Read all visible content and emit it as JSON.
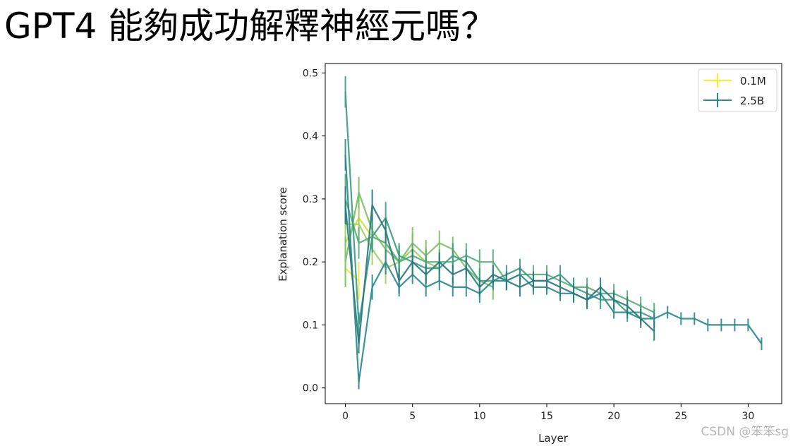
{
  "slide": {
    "title": "GPT4 能夠成功解釋神經元嗎？"
  },
  "watermark": "CSDN @笨笨sg",
  "chart_data": {
    "type": "line",
    "xlabel": "Layer",
    "ylabel": "Explanation score",
    "xlim": [
      -1.5,
      32.5
    ],
    "ylim": [
      -0.025,
      0.515
    ],
    "xticks": [
      0,
      5,
      10,
      15,
      20,
      25,
      30
    ],
    "yticks": [
      0.0,
      0.1,
      0.2,
      0.3,
      0.4,
      0.5
    ],
    "xtick_labels": [
      "0",
      "5",
      "10",
      "15",
      "20",
      "25",
      "30"
    ],
    "ytick_labels": [
      "0.0",
      "0.1",
      "0.2",
      "0.3",
      "0.4",
      "0.5"
    ],
    "grid": false,
    "legend_position": "top-right",
    "legend": [
      {
        "label": "0.1M",
        "color": "#f2f21e"
      },
      {
        "label": "2.5B",
        "color": "#2a8a8e"
      }
    ],
    "series": [
      {
        "color": "#e9e932",
        "x": [
          0,
          1
        ],
        "y": [
          0.19,
          0.17
        ],
        "err": [
          0.03,
          0.03
        ]
      },
      {
        "color": "#c8de3a",
        "x": [
          0,
          1,
          2,
          3,
          4,
          5
        ],
        "y": [
          0.23,
          0.27,
          0.24,
          0.23,
          0.2,
          0.22
        ],
        "err": [
          0.04,
          0.03,
          0.025,
          0.025,
          0.025,
          0.025
        ]
      },
      {
        "color": "#9fd060",
        "x": [
          0,
          1,
          2,
          3,
          4,
          5,
          6,
          7
        ],
        "y": [
          0.26,
          0.26,
          0.22,
          0.19,
          0.2,
          0.22,
          0.2,
          0.19
        ],
        "err": [
          0.04,
          0.03,
          0.025,
          0.025,
          0.025,
          0.025,
          0.025,
          0.025
        ]
      },
      {
        "color": "#7bbf65",
        "x": [
          0,
          1,
          2,
          3,
          4,
          5,
          6,
          7,
          8,
          9,
          10,
          11
        ],
        "y": [
          0.2,
          0.31,
          0.25,
          0.22,
          0.2,
          0.23,
          0.21,
          0.23,
          0.22,
          0.19,
          0.17,
          0.16
        ],
        "err": [
          0.04,
          0.025,
          0.025,
          0.025,
          0.025,
          0.025,
          0.025,
          0.02,
          0.02,
          0.02,
          0.02,
          0.02
        ]
      },
      {
        "color": "#5aae78",
        "x": [
          0,
          1,
          2,
          3,
          4,
          5,
          6,
          7,
          8,
          9,
          10,
          11,
          12,
          13,
          14,
          15,
          16,
          17,
          18,
          19,
          20,
          21,
          22,
          23
        ],
        "y": [
          0.3,
          0.23,
          0.24,
          0.23,
          0.2,
          0.21,
          0.2,
          0.2,
          0.2,
          0.21,
          0.2,
          0.2,
          0.17,
          0.18,
          0.18,
          0.18,
          0.17,
          0.16,
          0.16,
          0.15,
          0.15,
          0.14,
          0.13,
          0.12
        ],
        "err": [
          0.04,
          0.025,
          0.025,
          0.025,
          0.02,
          0.02,
          0.02,
          0.02,
          0.02,
          0.02,
          0.02,
          0.02,
          0.015,
          0.015,
          0.015,
          0.015,
          0.015,
          0.015,
          0.015,
          0.015,
          0.015,
          0.015,
          0.015,
          0.015
        ]
      },
      {
        "color": "#3c9c84",
        "x": [
          0,
          1,
          2,
          3,
          4,
          5,
          6,
          7,
          8,
          9,
          10,
          11,
          12,
          13,
          14,
          15,
          16,
          17,
          18,
          19,
          20,
          21,
          22,
          23
        ],
        "y": [
          0.47,
          0.1,
          0.24,
          0.27,
          0.21,
          0.2,
          0.19,
          0.19,
          0.21,
          0.2,
          0.17,
          0.17,
          0.18,
          0.19,
          0.17,
          0.17,
          0.18,
          0.16,
          0.15,
          0.14,
          0.14,
          0.12,
          0.12,
          0.11
        ],
        "err": [
          0.025,
          0.02,
          0.025,
          0.025,
          0.02,
          0.02,
          0.02,
          0.02,
          0.02,
          0.02,
          0.02,
          0.015,
          0.015,
          0.015,
          0.015,
          0.015,
          0.015,
          0.015,
          0.015,
          0.015,
          0.015,
          0.015,
          0.015,
          0.015
        ]
      },
      {
        "color": "#2a8a8e",
        "x": [
          0,
          1,
          2,
          3,
          4,
          5,
          6,
          7,
          8,
          9,
          10,
          11,
          12,
          13,
          14,
          15,
          16,
          17,
          18,
          19,
          20,
          21,
          22,
          23,
          24,
          25,
          26,
          27,
          28,
          29,
          30,
          31
        ],
        "y": [
          0.37,
          0.01,
          0.16,
          0.2,
          0.16,
          0.18,
          0.16,
          0.17,
          0.16,
          0.16,
          0.15,
          0.17,
          0.17,
          0.18,
          0.16,
          0.16,
          0.15,
          0.15,
          0.14,
          0.15,
          0.12,
          0.12,
          0.11,
          0.11,
          0.12,
          0.11,
          0.11,
          0.1,
          0.1,
          0.1,
          0.1,
          0.07
        ],
        "err": [
          0.025,
          0.012,
          0.02,
          0.02,
          0.015,
          0.015,
          0.015,
          0.015,
          0.015,
          0.015,
          0.015,
          0.012,
          0.012,
          0.012,
          0.012,
          0.012,
          0.012,
          0.012,
          0.012,
          0.012,
          0.01,
          0.01,
          0.01,
          0.01,
          0.01,
          0.01,
          0.01,
          0.01,
          0.01,
          0.01,
          0.01,
          0.01
        ]
      },
      {
        "color": "#29797e",
        "x": [
          0,
          1,
          2,
          3,
          4,
          5,
          6,
          7,
          8,
          9,
          10,
          11,
          12,
          13,
          14,
          15,
          16,
          17,
          18,
          19,
          20,
          21,
          22,
          23
        ],
        "y": [
          0.29,
          0.07,
          0.29,
          0.25,
          0.17,
          0.2,
          0.18,
          0.2,
          0.18,
          0.19,
          0.16,
          0.18,
          0.17,
          0.16,
          0.17,
          0.17,
          0.16,
          0.15,
          0.14,
          0.16,
          0.14,
          0.13,
          0.11,
          0.09
        ],
        "err": [
          0.03,
          0.015,
          0.025,
          0.02,
          0.02,
          0.02,
          0.015,
          0.015,
          0.015,
          0.015,
          0.015,
          0.015,
          0.015,
          0.015,
          0.015,
          0.015,
          0.015,
          0.015,
          0.015,
          0.015,
          0.015,
          0.015,
          0.015,
          0.015
        ]
      }
    ]
  }
}
